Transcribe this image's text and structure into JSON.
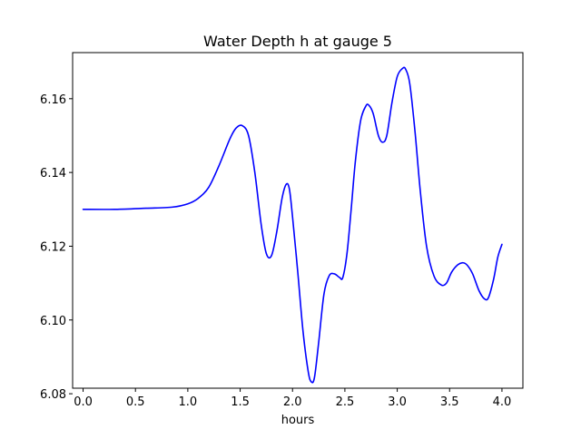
{
  "chart_data": {
    "type": "line",
    "title": "Water Depth h at gauge 5",
    "xlabel": "hours",
    "ylabel": "",
    "xlim": [
      -0.1,
      4.2
    ],
    "ylim": [
      6.0815,
      6.1725
    ],
    "x_ticks": [
      0.0,
      0.5,
      1.0,
      1.5,
      2.0,
      2.5,
      3.0,
      3.5,
      4.0
    ],
    "x_tick_labels": [
      "0.0",
      "0.5",
      "1.0",
      "1.5",
      "2.0",
      "2.5",
      "3.0",
      "3.5",
      "4.0"
    ],
    "y_ticks": [
      6.08,
      6.1,
      6.12,
      6.14,
      6.16
    ],
    "y_tick_labels": [
      "6.08",
      "6.10",
      "6.12",
      "6.14",
      "6.16"
    ],
    "grid": false,
    "legend": "none",
    "series": [
      {
        "color": "#0000ff",
        "x": [
          0.0,
          0.3,
          0.6,
          0.85,
          1.0,
          1.1,
          1.2,
          1.3,
          1.4,
          1.46,
          1.52,
          1.58,
          1.64,
          1.7,
          1.75,
          1.8,
          1.85,
          1.9,
          1.94,
          1.97,
          2.0,
          2.05,
          2.1,
          2.15,
          2.18,
          2.21,
          2.25,
          2.3,
          2.35,
          2.4,
          2.45,
          2.48,
          2.52,
          2.56,
          2.6,
          2.65,
          2.7,
          2.73,
          2.77,
          2.82,
          2.86,
          2.9,
          2.95,
          3.0,
          3.05,
          3.08,
          3.12,
          3.17,
          3.22,
          3.28,
          3.35,
          3.42,
          3.47,
          3.52,
          3.58,
          3.63,
          3.67,
          3.72,
          3.78,
          3.83,
          3.87,
          3.92,
          3.96,
          4.0
        ],
        "y": [
          6.13,
          6.13,
          6.1303,
          6.1306,
          6.1315,
          6.133,
          6.136,
          6.142,
          6.149,
          6.152,
          6.1527,
          6.15,
          6.14,
          6.126,
          6.118,
          6.1175,
          6.124,
          6.133,
          6.1368,
          6.1355,
          6.128,
          6.113,
          6.097,
          6.086,
          6.0832,
          6.0845,
          6.094,
          6.107,
          6.112,
          6.1125,
          6.1115,
          6.1115,
          6.118,
          6.13,
          6.143,
          6.154,
          6.158,
          6.1582,
          6.156,
          6.15,
          6.1482,
          6.15,
          6.159,
          6.166,
          6.1682,
          6.168,
          6.164,
          6.151,
          6.135,
          6.12,
          6.112,
          6.1095,
          6.11,
          6.113,
          6.115,
          6.1155,
          6.1148,
          6.1125,
          6.108,
          6.1058,
          6.106,
          6.111,
          6.117,
          6.1205
        ]
      }
    ]
  }
}
